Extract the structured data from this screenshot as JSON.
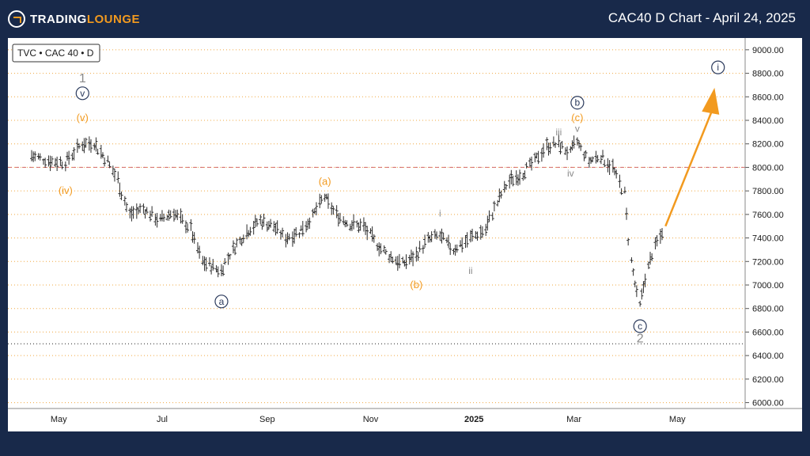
{
  "header": {
    "logo_text_left": "TRADING",
    "logo_text_right": "LOUNGE",
    "title": "CAC40 D Chart - April 24, 2025"
  },
  "symbol_label": "TVC • CAC 40 • D",
  "colors": {
    "background": "#18294a",
    "accent": "#f29a1f",
    "wave_navy": "#2b3a5c",
    "wave_gray": "#8a8a8a",
    "price_bars": "#2a2a2a",
    "reference_line": "#d26a6a",
    "grid": "#f0a840"
  },
  "chart_data": {
    "type": "line",
    "title": "CAC40 D Chart - April 24, 2025",
    "xlabel": "",
    "ylabel": "",
    "ylim": [
      5950,
      9100
    ],
    "x_ticks": [
      "May",
      "Jul",
      "Sep",
      "Nov",
      "2025",
      "Mar",
      "May"
    ],
    "y_ticks": [
      6000,
      6200,
      6400,
      6600,
      6800,
      7000,
      7200,
      7400,
      7600,
      7800,
      8000,
      8200,
      8400,
      8600,
      8800,
      9000
    ],
    "reference_line": 8000,
    "grid": true,
    "series": [
      {
        "x": [
          "2024-04-15",
          "2024-04-25",
          "2024-05-05",
          "2024-05-15",
          "2024-05-22",
          "2024-05-30",
          "2024-06-05",
          "2024-06-12",
          "2024-06-20",
          "2024-06-30",
          "2024-07-08",
          "2024-07-18",
          "2024-07-25",
          "2024-08-05",
          "2024-08-12",
          "2024-08-20",
          "2024-08-28",
          "2024-09-05",
          "2024-09-12",
          "2024-09-20",
          "2024-09-28",
          "2024-10-05",
          "2024-10-12",
          "2024-10-20",
          "2024-10-28",
          "2024-11-05",
          "2024-11-12",
          "2024-11-20",
          "2024-11-28",
          "2024-12-05",
          "2024-12-12",
          "2024-12-20",
          "2024-12-30",
          "2025-01-08",
          "2025-01-15",
          "2025-01-22",
          "2025-01-30",
          "2025-02-06",
          "2025-02-13",
          "2025-02-20",
          "2025-02-27",
          "2025-03-03",
          "2025-03-10",
          "2025-03-17",
          "2025-03-24",
          "2025-03-31",
          "2025-04-04",
          "2025-04-09",
          "2025-04-14",
          "2025-04-18",
          "2025-04-24"
        ],
        "values": [
          8100,
          8060,
          8040,
          8200,
          8210,
          8050,
          7900,
          7600,
          7650,
          7550,
          7620,
          7480,
          7200,
          7120,
          7300,
          7450,
          7550,
          7500,
          7400,
          7450,
          7580,
          7750,
          7600,
          7520,
          7500,
          7350,
          7250,
          7180,
          7250,
          7380,
          7420,
          7300,
          7400,
          7470,
          7700,
          7880,
          7950,
          8050,
          8180,
          8200,
          8120,
          8220,
          8050,
          8100,
          8000,
          7780,
          7200,
          6820,
          7150,
          7320,
          7500
        ]
      }
    ],
    "wave_labels": [
      {
        "text": "1",
        "x": "2024-05-15",
        "y": 8750
      },
      {
        "text": "v",
        "x": "2024-05-15",
        "y": 8630
      },
      {
        "text": "(v)",
        "x": "2024-05-15",
        "y": 8420
      },
      {
        "text": "(iv)",
        "x": "2024-05-05",
        "y": 7800
      },
      {
        "text": "a",
        "x": "2024-08-05",
        "y": 6860
      },
      {
        "text": "(a)",
        "x": "2024-10-05",
        "y": 7880
      },
      {
        "text": "(b)",
        "x": "2024-11-28",
        "y": 7000
      },
      {
        "text": "i",
        "x": "2024-12-12",
        "y": 7610
      },
      {
        "text": "ii",
        "x": "2024-12-30",
        "y": 7120
      },
      {
        "text": "iii",
        "x": "2025-02-20",
        "y": 8300
      },
      {
        "text": "b",
        "x": "2025-03-03",
        "y": 8550
      },
      {
        "text": "(c)",
        "x": "2025-03-03",
        "y": 8420
      },
      {
        "text": "v",
        "x": "2025-03-03",
        "y": 8330
      },
      {
        "text": "iv",
        "x": "2025-02-27",
        "y": 7950
      },
      {
        "text": "c",
        "x": "2025-04-09",
        "y": 6650
      },
      {
        "text": "2",
        "x": "2025-04-09",
        "y": 6540
      },
      {
        "text": "i",
        "x": "2025-05-25",
        "y": 8850
      }
    ],
    "projection": {
      "from": {
        "x": "2025-04-24",
        "y": 7500
      },
      "to": {
        "x": "2025-05-22",
        "y": 8650
      }
    }
  }
}
